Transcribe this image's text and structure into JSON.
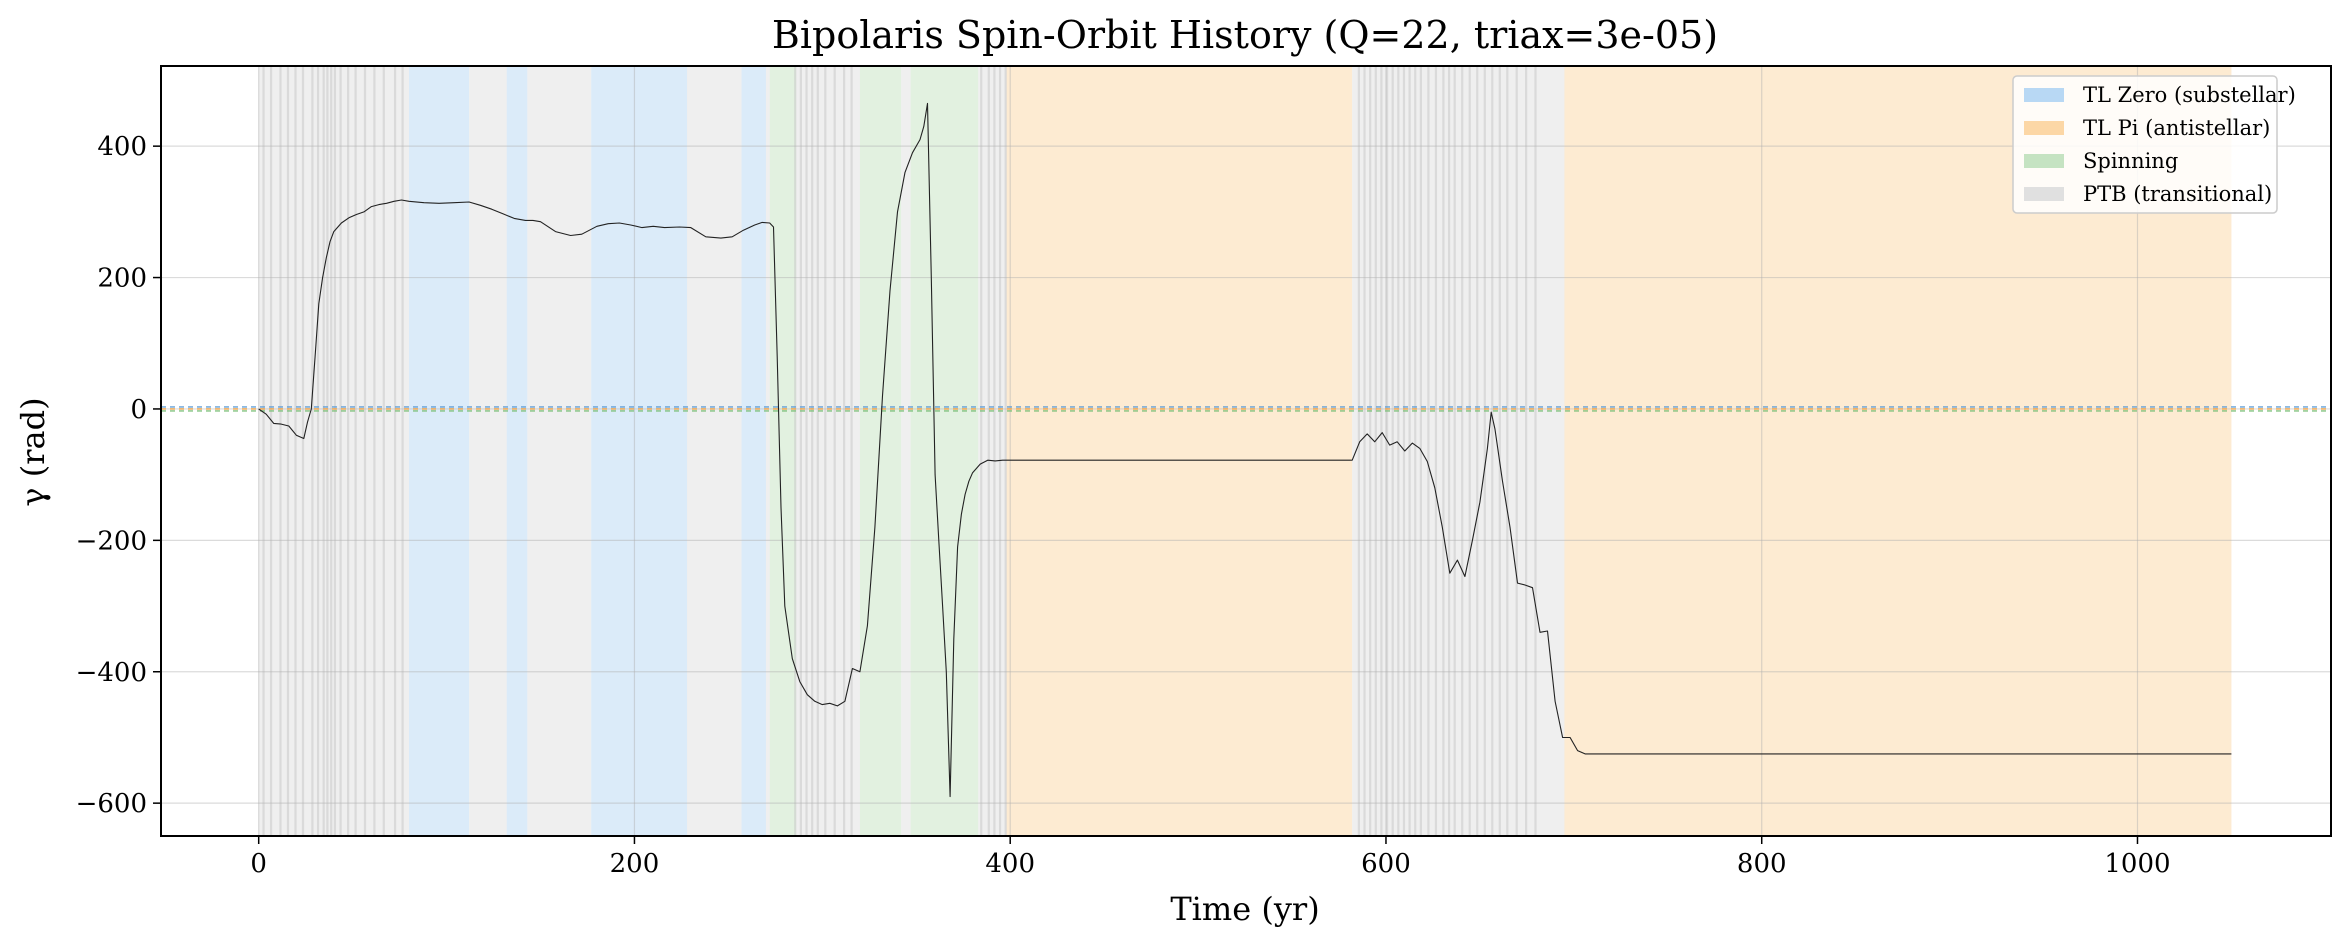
{
  "chart_data": {
    "type": "line",
    "title": "Bipolaris Spin-Orbit History (Q=22, triax=3e-05)",
    "xlabel": "Time (yr)",
    "ylabel": "γ (rad)",
    "xlim": [
      -52,
      1103
    ],
    "ylim": [
      -650,
      522
    ],
    "xticks": [
      0,
      200,
      400,
      600,
      800,
      1000
    ],
    "yticks": [
      -600,
      -400,
      -200,
      0,
      200,
      400
    ],
    "xtick_labels": [
      "0",
      "200",
      "400",
      "600",
      "800",
      "1000"
    ],
    "ytick_labels": [
      "−600",
      "−400",
      "−200",
      "0",
      "200",
      "400"
    ],
    "grid": true,
    "legend_position": "top-right",
    "legend": [
      {
        "label": "TL Zero (substellar)",
        "color": "#b8d8f4"
      },
      {
        "label": "TL Pi (antistellar)",
        "color": "#fcd7a6"
      },
      {
        "label": "Spinning",
        "color": "#c5e3c2"
      },
      {
        "label": "PTB (transitional)",
        "color": "#e0e0e0"
      }
    ],
    "regions": [
      {
        "state": "PTB",
        "start": 0,
        "end": 80
      },
      {
        "state": "TL Zero",
        "start": 80,
        "end": 112
      },
      {
        "state": "PTB",
        "start": 112,
        "end": 132
      },
      {
        "state": "TL Zero",
        "start": 132,
        "end": 143
      },
      {
        "state": "PTB",
        "start": 143,
        "end": 177
      },
      {
        "state": "TL Zero",
        "start": 177,
        "end": 228
      },
      {
        "state": "PTB",
        "start": 228,
        "end": 257
      },
      {
        "state": "TL Zero",
        "start": 257,
        "end": 270
      },
      {
        "state": "PTB",
        "start": 270,
        "end": 272
      },
      {
        "state": "Spinning",
        "start": 272,
        "end": 286
      },
      {
        "state": "PTB",
        "start": 286,
        "end": 320
      },
      {
        "state": "Spinning",
        "start": 320,
        "end": 342
      },
      {
        "state": "PTB",
        "start": 342,
        "end": 347
      },
      {
        "state": "Spinning",
        "start": 347,
        "end": 383
      },
      {
        "state": "PTB",
        "start": 383,
        "end": 398
      },
      {
        "state": "TL Pi",
        "start": 398,
        "end": 582
      },
      {
        "state": "PTB",
        "start": 582,
        "end": 695
      },
      {
        "state": "TL Pi",
        "start": 695,
        "end": 1050
      }
    ],
    "ptb_streaks": [
      2,
      6,
      11,
      15,
      19,
      23,
      28,
      31,
      34,
      36,
      38,
      40,
      43,
      47,
      51,
      56,
      61,
      66,
      72,
      76,
      285,
      288,
      291,
      294,
      297,
      301,
      306,
      311,
      315,
      384,
      388,
      391,
      394,
      397,
      585,
      588,
      591,
      594,
      597,
      600,
      603,
      606,
      609,
      612,
      615,
      618,
      622,
      626,
      630,
      633,
      636,
      640,
      644,
      648,
      652,
      656,
      660,
      664,
      669,
      674,
      679
    ],
    "zero_lines": [
      {
        "y": 3,
        "color": "#5b9bd5"
      },
      {
        "y": 0,
        "color": "#f0a040"
      },
      {
        "y": -3,
        "color": "#7cbf78"
      }
    ],
    "series": [
      {
        "color": "#222222",
        "x": [
          0,
          4,
          8,
          12,
          16,
          20,
          24,
          26,
          28,
          30,
          32,
          34,
          36,
          38,
          40,
          44,
          48,
          52,
          56,
          60,
          64,
          68,
          72,
          76,
          80,
          88,
          96,
          104,
          112,
          118,
          124,
          130,
          136,
          142,
          146,
          150,
          158,
          166,
          172,
          180,
          186,
          192,
          198,
          204,
          210,
          216,
          224,
          230,
          238,
          246,
          252,
          258,
          264,
          268,
          272,
          274,
          276,
          278,
          280,
          284,
          288,
          292,
          296,
          300,
          304,
          308,
          312,
          316,
          320,
          324,
          328,
          332,
          336,
          340,
          344,
          348,
          352,
          354,
          356,
          358,
          360,
          362,
          364,
          366,
          368,
          370,
          372,
          374,
          376,
          378,
          380,
          384,
          388,
          392,
          396,
          400,
          410,
          450,
          500,
          550,
          582,
          586,
          590,
          594,
          598,
          602,
          606,
          610,
          614,
          618,
          622,
          626,
          630,
          634,
          638,
          642,
          646,
          650,
          654,
          656,
          658,
          662,
          666,
          670,
          674,
          678,
          682,
          686,
          690,
          694,
          698,
          702,
          706,
          710,
          720,
          800,
          900,
          1000,
          1050
        ],
        "y": [
          0,
          -8,
          -22,
          -23,
          -26,
          -40,
          -45,
          -20,
          0,
          80,
          160,
          200,
          230,
          255,
          270,
          283,
          291,
          296,
          300,
          308,
          311,
          313,
          316,
          318,
          316,
          314,
          313,
          314,
          315,
          310,
          304,
          297,
          290,
          287,
          287,
          285,
          270,
          264,
          266,
          278,
          282,
          283,
          280,
          276,
          278,
          276,
          277,
          276,
          262,
          260,
          262,
          272,
          280,
          284,
          283,
          277,
          80,
          -150,
          -300,
          -380,
          -415,
          -435,
          -445,
          -450,
          -448,
          -452,
          -445,
          -395,
          -400,
          -330,
          -180,
          20,
          180,
          300,
          360,
          390,
          410,
          430,
          465,
          200,
          -100,
          -200,
          -300,
          -400,
          -590,
          -350,
          -210,
          -160,
          -130,
          -110,
          -97,
          -84,
          -78,
          -79,
          -78,
          -78,
          -78,
          -78,
          -78,
          -78,
          -78,
          -50,
          -38,
          -50,
          -36,
          -55,
          -50,
          -64,
          -52,
          -60,
          -80,
          -120,
          -180,
          -250,
          -230,
          -255,
          -200,
          -142,
          -60,
          -5,
          -30,
          -110,
          -180,
          -265,
          -268,
          -272,
          -340,
          -338,
          -445,
          -500,
          -500,
          -520,
          -525,
          -525,
          -525,
          -525,
          -525,
          -525,
          -525
        ]
      }
    ]
  }
}
